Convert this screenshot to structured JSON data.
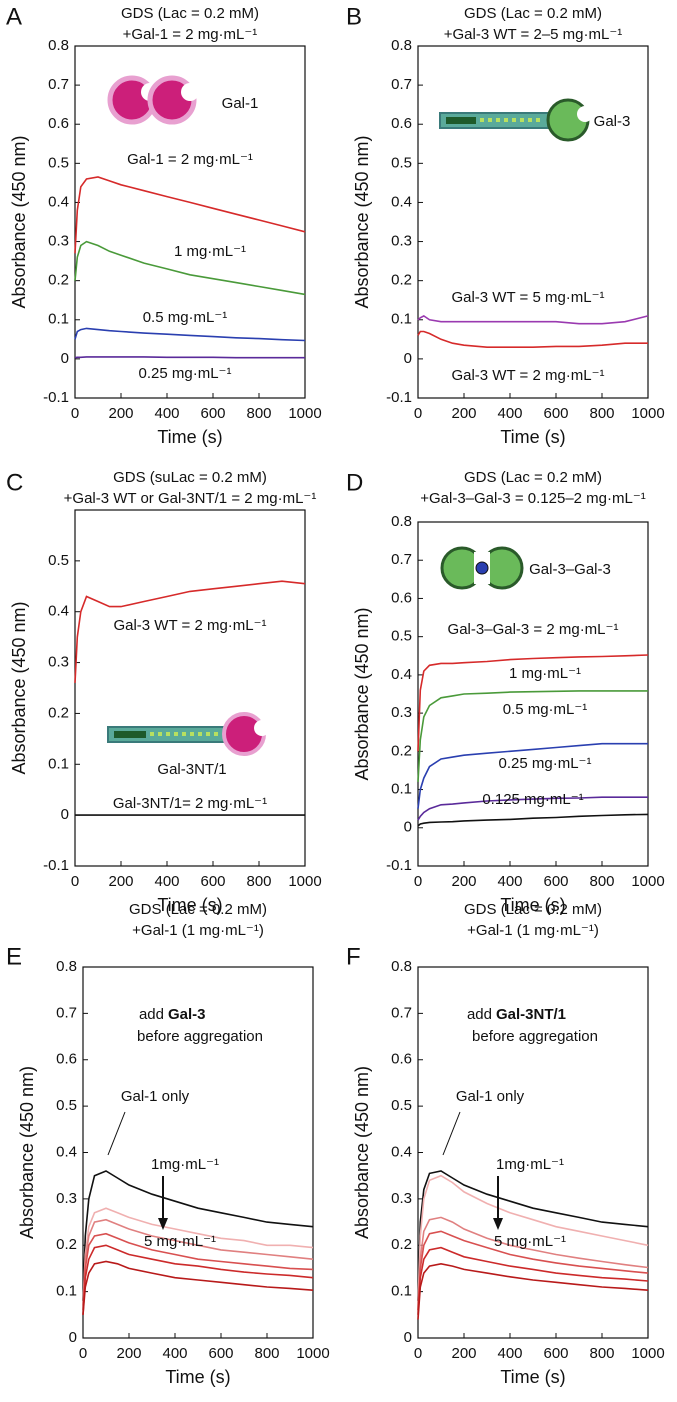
{
  "chart_data": [
    {
      "panel": "A",
      "type": "line",
      "title": [
        "GDS (Lac = 0.2 mM)",
        "+Gal-1 = 2 mg·mL⁻¹"
      ],
      "xlabel": "Time (s)",
      "ylabel": "Absorbance (450 nm)",
      "x": [
        0,
        10,
        25,
        50,
        100,
        150,
        200,
        300,
        400,
        500,
        600,
        700,
        800,
        900,
        1000
      ],
      "xlim": [
        0,
        1000
      ],
      "ylim": [
        -0.1,
        0.8
      ],
      "xticks": [
        0,
        200,
        400,
        600,
        800,
        1000
      ],
      "yticks": [
        -0.1,
        0,
        0.1,
        0.2,
        0.3,
        0.4,
        0.5,
        0.6,
        0.7,
        0.8
      ],
      "series": [
        {
          "name": "Gal-1 = 2 mg·mL⁻¹",
          "color": "#d62a2a",
          "values": [
            0.27,
            0.38,
            0.44,
            0.46,
            0.465,
            0.455,
            0.445,
            0.43,
            0.415,
            0.4,
            0.385,
            0.37,
            0.355,
            0.34,
            0.325
          ]
        },
        {
          "name": "1 mg·mL⁻¹",
          "color": "#4a9a3a",
          "values": [
            0.2,
            0.26,
            0.29,
            0.3,
            0.29,
            0.275,
            0.265,
            0.245,
            0.23,
            0.215,
            0.205,
            0.195,
            0.185,
            0.175,
            0.165
          ]
        },
        {
          "name": "0.5 mg·mL⁻¹",
          "color": "#2a3fb0",
          "values": [
            0.05,
            0.07,
            0.075,
            0.078,
            0.075,
            0.072,
            0.07,
            0.066,
            0.063,
            0.06,
            0.057,
            0.054,
            0.052,
            0.049,
            0.047
          ]
        },
        {
          "name": "0.25 mg·mL⁻¹",
          "color": "#5a2a9a",
          "values": [
            0.003,
            0.004,
            0.004,
            0.005,
            0.005,
            0.005,
            0.005,
            0.005,
            0.004,
            0.004,
            0.004,
            0.003,
            0.003,
            0.003,
            0.003
          ]
        }
      ],
      "annotations": [
        "Gal-1"
      ]
    },
    {
      "panel": "B",
      "type": "line",
      "title": [
        "GDS (Lac = 0.2 mM)",
        "+Gal-3 WT = 2–5 mg·mL⁻¹"
      ],
      "xlabel": "Time (s)",
      "ylabel": "Absorbance (450 nm)",
      "x": [
        0,
        10,
        25,
        50,
        100,
        150,
        200,
        300,
        400,
        500,
        600,
        700,
        800,
        900,
        1000
      ],
      "xlim": [
        0,
        1000
      ],
      "ylim": [
        -0.1,
        0.8
      ],
      "xticks": [
        0,
        200,
        400,
        600,
        800,
        1000
      ],
      "yticks": [
        -0.1,
        0,
        0.1,
        0.2,
        0.3,
        0.4,
        0.5,
        0.6,
        0.7,
        0.8
      ],
      "series": [
        {
          "name": "Gal-3 WT = 5 mg·mL⁻¹",
          "color": "#9a3ab0",
          "values": [
            0.1,
            0.105,
            0.11,
            0.1,
            0.095,
            0.095,
            0.095,
            0.095,
            0.095,
            0.095,
            0.095,
            0.09,
            0.09,
            0.095,
            0.11
          ]
        },
        {
          "name": "Gal-3 WT = 2 mg·mL⁻¹",
          "color": "#d62a2a",
          "values": [
            0.06,
            0.07,
            0.07,
            0.065,
            0.05,
            0.04,
            0.035,
            0.03,
            0.03,
            0.03,
            0.032,
            0.032,
            0.035,
            0.04,
            0.04
          ]
        }
      ],
      "annotations": [
        "Gal-3"
      ]
    },
    {
      "panel": "C",
      "type": "line",
      "title": [
        "GDS (suLac = 0.2 mM)",
        "+Gal-3 WT or Gal-3NT/1 = 2 mg·mL⁻¹"
      ],
      "xlabel": "Time (s)",
      "ylabel": "Absorbance (450 nm)",
      "x": [
        0,
        10,
        25,
        50,
        100,
        150,
        200,
        300,
        400,
        500,
        600,
        700,
        800,
        900,
        1000
      ],
      "xlim": [
        0,
        1000
      ],
      "ylim": [
        -0.1,
        0.6
      ],
      "xticks": [
        0,
        200,
        400,
        600,
        800,
        1000
      ],
      "yticks": [
        -0.1,
        0,
        0.1,
        0.2,
        0.3,
        0.4,
        0.5
      ],
      "series": [
        {
          "name": "Gal-3 WT = 2 mg·mL⁻¹",
          "color": "#d62a2a",
          "values": [
            0.26,
            0.35,
            0.4,
            0.43,
            0.42,
            0.41,
            0.41,
            0.42,
            0.43,
            0.44,
            0.445,
            0.45,
            0.455,
            0.46,
            0.455
          ]
        },
        {
          "name": "Gal-3NT/1= 2 mg·mL⁻¹",
          "color": "#111111",
          "values": [
            0,
            0,
            0,
            0,
            0,
            0,
            0,
            0,
            0,
            0,
            0,
            0,
            0,
            0,
            0
          ]
        }
      ],
      "annotations": [
        "Gal-3NT/1"
      ]
    },
    {
      "panel": "D",
      "type": "line",
      "title": [
        "GDS (Lac = 0.2 mM)",
        "+Gal-3–Gal-3 = 0.125–2 mg·mL⁻¹"
      ],
      "xlabel": "Time (s)",
      "ylabel": "Absorbance (450 nm)",
      "x": [
        0,
        10,
        25,
        50,
        100,
        150,
        200,
        300,
        400,
        500,
        600,
        700,
        800,
        900,
        1000
      ],
      "xlim": [
        0,
        1000
      ],
      "ylim": [
        -0.1,
        0.8
      ],
      "xticks": [
        0,
        200,
        400,
        600,
        800,
        1000
      ],
      "yticks": [
        -0.1,
        0,
        0.1,
        0.2,
        0.3,
        0.4,
        0.5,
        0.6,
        0.7,
        0.8
      ],
      "series": [
        {
          "name": "Gal-3–Gal-3 = 2 mg·mL⁻¹",
          "color": "#d62a2a",
          "values": [
            0.2,
            0.36,
            0.41,
            0.425,
            0.43,
            0.43,
            0.432,
            0.435,
            0.44,
            0.443,
            0.445,
            0.447,
            0.448,
            0.45,
            0.452
          ]
        },
        {
          "name": "1 mg·mL⁻¹",
          "color": "#4a9a3a",
          "values": [
            0.12,
            0.23,
            0.29,
            0.32,
            0.34,
            0.345,
            0.35,
            0.352,
            0.355,
            0.356,
            0.357,
            0.358,
            0.358,
            0.358,
            0.358
          ]
        },
        {
          "name": "0.5 mg·mL⁻¹",
          "color": "#2a3fb0",
          "values": [
            0.05,
            0.1,
            0.13,
            0.16,
            0.18,
            0.185,
            0.19,
            0.195,
            0.2,
            0.205,
            0.21,
            0.215,
            0.22,
            0.22,
            0.22
          ]
        },
        {
          "name": "0.25 mg·mL⁻¹",
          "color": "#5a2a9a",
          "values": [
            0.02,
            0.03,
            0.04,
            0.05,
            0.06,
            0.062,
            0.065,
            0.07,
            0.073,
            0.075,
            0.077,
            0.078,
            0.08,
            0.08,
            0.08
          ]
        },
        {
          "name": "0.125 mg·mL⁻¹",
          "color": "#111111",
          "values": [
            0.005,
            0.01,
            0.012,
            0.014,
            0.015,
            0.016,
            0.018,
            0.02,
            0.022,
            0.025,
            0.027,
            0.03,
            0.032,
            0.034,
            0.035
          ]
        }
      ],
      "annotations": [
        "Gal-3–Gal-3"
      ]
    },
    {
      "panel": "E",
      "type": "line",
      "title": [
        "GDS (Lac = 0.2 mM)",
        "+Gal-1 (1 mg·mL⁻¹)"
      ],
      "xlabel": "Time (s)",
      "ylabel": "Absorbance (450 nm)",
      "x": [
        0,
        10,
        25,
        50,
        100,
        150,
        200,
        300,
        400,
        500,
        600,
        700,
        800,
        900,
        1000
      ],
      "xlim": [
        0,
        1000
      ],
      "ylim": [
        0,
        0.8
      ],
      "xticks": [
        0,
        200,
        400,
        600,
        800,
        1000
      ],
      "yticks": [
        0,
        0.1,
        0.2,
        0.3,
        0.4,
        0.5,
        0.6,
        0.7,
        0.8
      ],
      "series": [
        {
          "name": "Gal-1 only",
          "color": "#111111",
          "values": [
            0.08,
            0.22,
            0.3,
            0.35,
            0.36,
            0.345,
            0.33,
            0.31,
            0.295,
            0.28,
            0.27,
            0.26,
            0.25,
            0.245,
            0.24
          ]
        },
        {
          "name": "1mg·mL⁻¹",
          "color": "#f0b0b0",
          "values": [
            0.07,
            0.18,
            0.24,
            0.27,
            0.28,
            0.27,
            0.26,
            0.245,
            0.235,
            0.225,
            0.215,
            0.21,
            0.2,
            0.2,
            0.195
          ]
        },
        {
          "color": "#e08080",
          "values": [
            0.07,
            0.17,
            0.22,
            0.25,
            0.255,
            0.245,
            0.235,
            0.22,
            0.21,
            0.2,
            0.19,
            0.185,
            0.18,
            0.175,
            0.17
          ]
        },
        {
          "color": "#d85050",
          "values": [
            0.06,
            0.15,
            0.2,
            0.22,
            0.225,
            0.215,
            0.205,
            0.19,
            0.18,
            0.17,
            0.165,
            0.16,
            0.155,
            0.15,
            0.148
          ]
        },
        {
          "color": "#cc2a2a",
          "values": [
            0.05,
            0.13,
            0.17,
            0.195,
            0.2,
            0.19,
            0.18,
            0.17,
            0.16,
            0.155,
            0.148,
            0.142,
            0.138,
            0.135,
            0.13
          ]
        },
        {
          "name": "5 mg·mL⁻¹",
          "color": "#b81a1a",
          "values": [
            0.05,
            0.11,
            0.14,
            0.16,
            0.165,
            0.16,
            0.15,
            0.14,
            0.13,
            0.125,
            0.12,
            0.115,
            0.11,
            0.107,
            0.103
          ]
        }
      ],
      "annotations": [
        "add",
        "Gal-3",
        "before aggregation"
      ]
    },
    {
      "panel": "F",
      "type": "line",
      "title": [
        "GDS (Lac = 0.2 mM)",
        "+Gal-1 (1 mg·mL⁻¹)"
      ],
      "xlabel": "Time (s)",
      "ylabel": "Absorbance (450 nm)",
      "x": [
        0,
        10,
        25,
        50,
        100,
        150,
        200,
        300,
        400,
        500,
        600,
        700,
        800,
        900,
        1000
      ],
      "xlim": [
        0,
        1000
      ],
      "ylim": [
        0,
        0.8
      ],
      "xticks": [
        0,
        200,
        400,
        600,
        800,
        1000
      ],
      "yticks": [
        0,
        0.1,
        0.2,
        0.3,
        0.4,
        0.5,
        0.6,
        0.7,
        0.8
      ],
      "series": [
        {
          "name": "Gal-1 only",
          "color": "#111111",
          "values": [
            0.08,
            0.25,
            0.32,
            0.355,
            0.36,
            0.345,
            0.33,
            0.31,
            0.295,
            0.28,
            0.27,
            0.26,
            0.25,
            0.245,
            0.24
          ]
        },
        {
          "name": "1mg·mL⁻¹",
          "color": "#f0b0b0",
          "values": [
            0.07,
            0.22,
            0.3,
            0.34,
            0.35,
            0.335,
            0.315,
            0.29,
            0.27,
            0.255,
            0.24,
            0.23,
            0.22,
            0.21,
            0.2
          ]
        },
        {
          "color": "#e08080",
          "values": [
            0.06,
            0.17,
            0.23,
            0.255,
            0.26,
            0.25,
            0.235,
            0.215,
            0.2,
            0.19,
            0.18,
            0.172,
            0.165,
            0.158,
            0.152
          ]
        },
        {
          "color": "#d85050",
          "values": [
            0.06,
            0.15,
            0.2,
            0.225,
            0.23,
            0.22,
            0.21,
            0.195,
            0.18,
            0.17,
            0.162,
            0.155,
            0.15,
            0.145,
            0.14
          ]
        },
        {
          "color": "#cc2a2a",
          "values": [
            0.05,
            0.13,
            0.17,
            0.19,
            0.195,
            0.185,
            0.175,
            0.165,
            0.155,
            0.148,
            0.14,
            0.135,
            0.13,
            0.127,
            0.123
          ]
        },
        {
          "name": "5 mg·mL⁻¹",
          "color": "#b81a1a",
          "values": [
            0.04,
            0.11,
            0.14,
            0.155,
            0.16,
            0.155,
            0.148,
            0.14,
            0.132,
            0.125,
            0.12,
            0.115,
            0.11,
            0.107,
            0.103
          ]
        }
      ],
      "annotations": [
        "add",
        "Gal-3NT/1",
        "before aggregation"
      ]
    }
  ]
}
